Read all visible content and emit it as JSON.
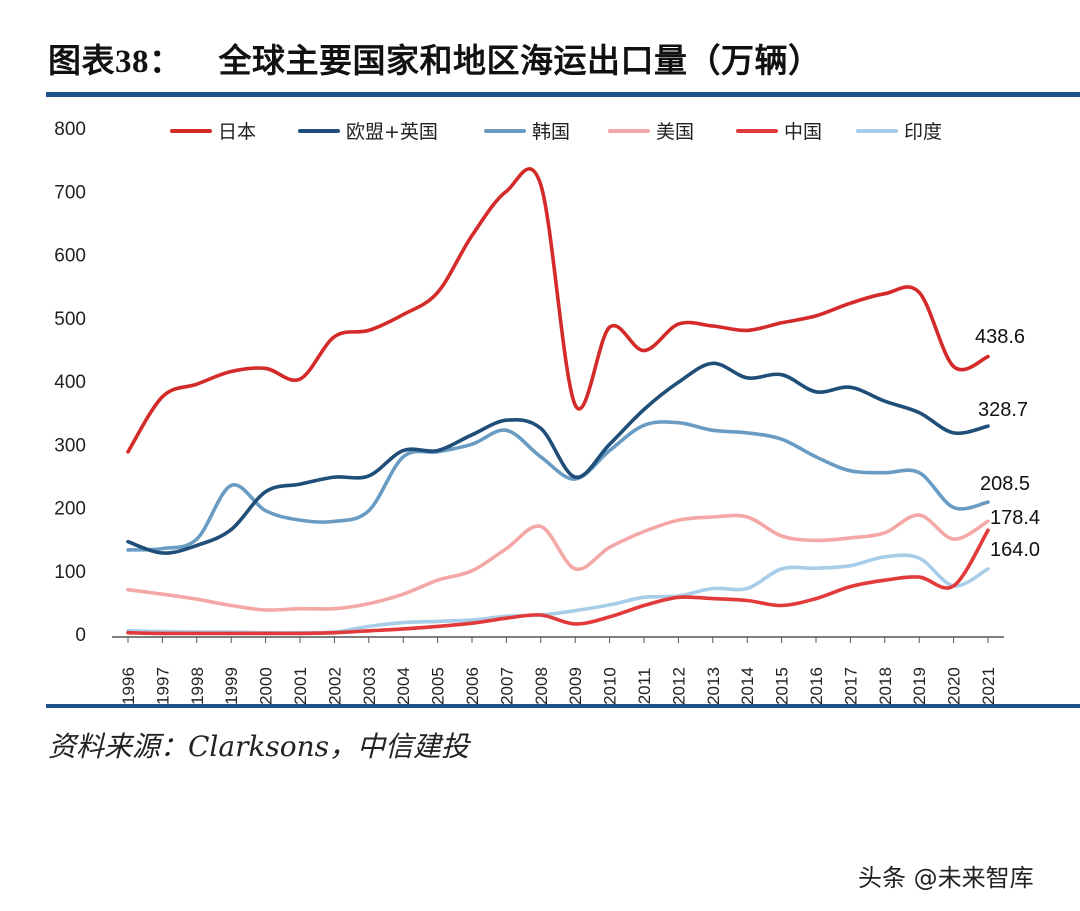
{
  "title": {
    "prefix": "图表",
    "number": "38",
    "suffix": "：",
    "main": "全球主要国家和地区海运出口量（万辆）"
  },
  "source": "资料来源：Clarksons，中信建投",
  "watermark": {
    "text": "头条 @未来智库"
  },
  "chart_data": {
    "type": "line",
    "title": "全球主要国家和地区海运出口量（万辆）",
    "x": [
      "1996",
      "1997",
      "1998",
      "1999",
      "2000",
      "2001",
      "2002",
      "2003",
      "2004",
      "2005",
      "2006",
      "2007",
      "2008",
      "2009",
      "2010",
      "2011",
      "2012",
      "2013",
      "2014",
      "2015",
      "2016",
      "2017",
      "2018",
      "2019",
      "2020",
      "2021"
    ],
    "ylim": [
      0,
      800
    ],
    "yticks": [
      0,
      100,
      200,
      300,
      400,
      500,
      600,
      700,
      800
    ],
    "legend_position": "top",
    "series": [
      {
        "name": "日本",
        "color": "#d42a2a",
        "values": [
          288,
          375,
          395,
          415,
          420,
          403,
          470,
          480,
          505,
          540,
          630,
          700,
          710,
          362,
          485,
          448,
          490,
          487,
          480,
          492,
          503,
          523,
          538,
          540,
          423,
          438.6
        ]
      },
      {
        "name": "欧盟+英国",
        "color": "#1f4e79",
        "values": [
          146,
          128,
          140,
          165,
          225,
          237,
          248,
          250,
          290,
          290,
          315,
          338,
          325,
          248,
          300,
          355,
          398,
          428,
          405,
          410,
          383,
          390,
          368,
          350,
          318,
          328.7
        ]
      },
      {
        "name": "韩国",
        "color": "#6a9cc3",
        "values": [
          133,
          135,
          150,
          235,
          195,
          180,
          178,
          195,
          280,
          288,
          300,
          322,
          280,
          245,
          290,
          330,
          334,
          322,
          318,
          308,
          280,
          258,
          255,
          255,
          200,
          208.5
        ]
      },
      {
        "name": "美国",
        "color": "#f4a7a7",
        "values": [
          70,
          63,
          55,
          45,
          38,
          40,
          40,
          48,
          63,
          85,
          100,
          135,
          170,
          103,
          137,
          162,
          180,
          185,
          185,
          155,
          148,
          152,
          160,
          188,
          150,
          178.4
        ]
      },
      {
        "name": "中国",
        "color": "#e23a3a",
        "values": [
          2,
          1,
          1,
          1,
          1,
          1,
          2,
          5,
          8,
          12,
          17,
          25,
          30,
          16,
          27,
          45,
          58,
          56,
          53,
          45,
          56,
          75,
          85,
          90,
          76,
          164.0
        ]
      },
      {
        "name": "印度",
        "color": "#a8cde8",
        "values": [
          5,
          4,
          3,
          3,
          2,
          2,
          3,
          12,
          18,
          20,
          22,
          28,
          30,
          37,
          46,
          58,
          60,
          72,
          72,
          103,
          104,
          108,
          122,
          120,
          76,
          103
        ]
      }
    ],
    "end_labels": [
      {
        "series": "日本",
        "text": "438.6"
      },
      {
        "series": "欧盟+英国",
        "text": "328.7"
      },
      {
        "series": "韩国",
        "text": "208.5"
      },
      {
        "series": "美国",
        "text": "178.4"
      },
      {
        "series": "中国",
        "text": "164.0"
      }
    ]
  }
}
